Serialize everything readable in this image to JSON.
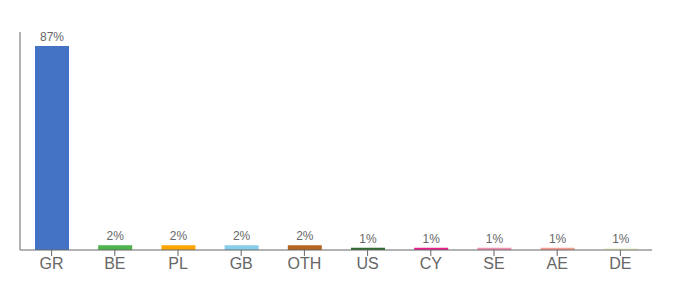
{
  "chart_data": {
    "type": "bar",
    "categories": [
      "GR",
      "BE",
      "PL",
      "GB",
      "OTH",
      "US",
      "CY",
      "SE",
      "AE",
      "DE"
    ],
    "values": [
      87,
      2,
      2,
      2,
      2,
      1,
      1,
      1,
      1,
      1
    ],
    "value_labels": [
      "87%",
      "2%",
      "2%",
      "2%",
      "2%",
      "1%",
      "1%",
      "1%",
      "1%",
      "1%"
    ],
    "colors": [
      "#4472c4",
      "#4db34d",
      "#ffa500",
      "#87ceeb",
      "#b5651d",
      "#2d6e2d",
      "#e91e8c",
      "#f48fb1",
      "#f4a090",
      "#f5f5dc"
    ],
    "ylim": [
      0,
      93
    ],
    "grid": false,
    "data_labels": true,
    "tick_labels": "x"
  }
}
